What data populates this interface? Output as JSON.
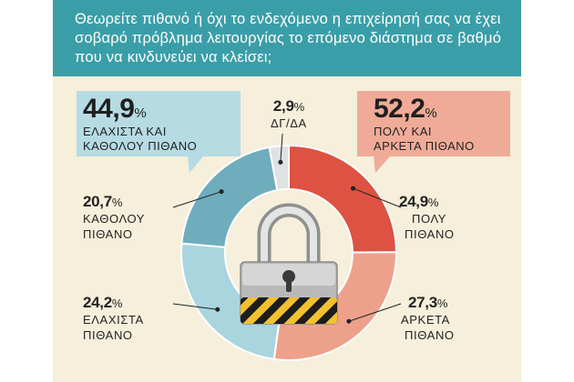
{
  "question": "Θεωρείτε πιθανό ή όχι το ενδεχόμενο η επιχείρησή σας να έχει σοβαρό πρόβλημα λειτουργίας το επόμενο διάστημα σε βαθμό που να κινδυνεύει να κλείσει;",
  "summary_left": {
    "value": "44,9",
    "unit": "%",
    "line1": "ΕΛΑΧΙΣΤΑ ΚΑΙ",
    "line2": "ΚΑΘΟΛΟΥ ΠΙΘΑΝΟ"
  },
  "summary_right": {
    "value": "52,2",
    "unit": "%",
    "line1": "ΠΟΛΥ ΚΑΙ",
    "line2": "ΑΡΚΕΤΑ ΠΙΘΑΝΟ"
  },
  "colors": {
    "header": "#3a9ea8",
    "background": "#f5efdb",
    "poly": "#dd5242",
    "arketa": "#eda18b",
    "elaxista": "#a9d5de",
    "katholou": "#6fadbd",
    "dgda": "#dfe2e4",
    "box_left": "#b6dbe3",
    "box_right": "#f0ab98"
  },
  "icon": "padlock-icon",
  "chart_data": {
    "type": "pie",
    "donut": true,
    "start": "top",
    "direction": "clockwise",
    "slices": [
      {
        "value": 24.9,
        "label": "ΠΟΛΥ ΠΙΘΑΝΟ",
        "display": "24,9",
        "line1": "ΠΟΛΥ",
        "line2": "ΠΙΘΑΝΟ",
        "color": "#dd5242"
      },
      {
        "value": 27.3,
        "label": "ΑΡΚΕΤΑ ΠΙΘΑΝΟ",
        "display": "27,3",
        "line1": "ΑΡΚΕΤΑ",
        "line2": "ΠΙΘΑΝΟ",
        "color": "#eda18b"
      },
      {
        "value": 24.2,
        "label": "ΕΛΑΧΙΣΤΑ ΠΙΘΑΝΟ",
        "display": "24,2",
        "line1": "ΕΛΑΧΙΣΤΑ",
        "line2": "ΠΙΘΑΝΟ",
        "color": "#a9d5de"
      },
      {
        "value": 20.7,
        "label": "ΚΑΘΟΛΟΥ ΠΙΘΑΝΟ",
        "display": "20,7",
        "line1": "ΚΑΘΟΛΟΥ",
        "line2": "ΠΙΘΑΝΟ",
        "color": "#6fadbd"
      },
      {
        "value": 2.9,
        "label": "ΔΓ/ΔΑ",
        "display": "2,9",
        "line1": "ΔΓ/ΔΑ",
        "line2": "",
        "color": "#dfe2e4"
      }
    ]
  }
}
